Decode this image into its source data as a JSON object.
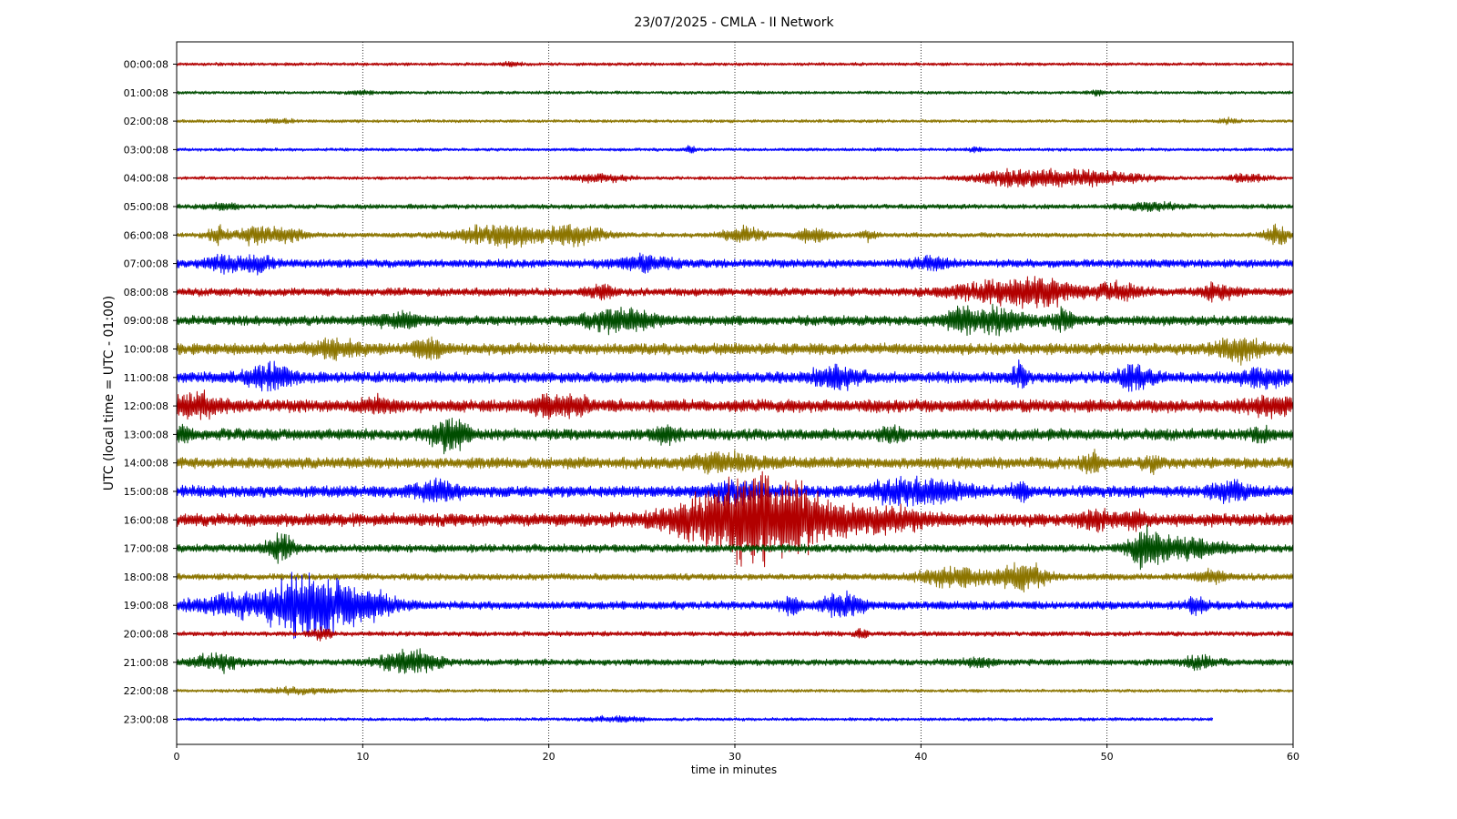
{
  "chart_data": {
    "type": "line",
    "title": "23/07/2025 - CMLA - II Network",
    "xlabel": "time in minutes",
    "ylabel": "UTC (local time = UTC - 01:00)",
    "xlim": [
      0,
      60
    ],
    "x_ticks": [
      0,
      10,
      20,
      30,
      40,
      50,
      60
    ],
    "x_tick_labels": [
      "0",
      "10",
      "20",
      "30",
      "40",
      "50",
      "60"
    ],
    "grid": "vertical dotted at x ticks",
    "colors": [
      "#b20000",
      "#004d00",
      "#8c7500",
      "#0000ff"
    ],
    "series": [
      {
        "label": "00:00:08",
        "color": "#b20000",
        "amp": 2,
        "end": 60,
        "events": [
          [
            18,
            0.5,
            3
          ]
        ]
      },
      {
        "label": "01:00:08",
        "color": "#004d00",
        "amp": 2,
        "end": 60,
        "events": [
          [
            10,
            0.6,
            2
          ],
          [
            49.5,
            0.5,
            3
          ]
        ]
      },
      {
        "label": "02:00:08",
        "color": "#8c7500",
        "amp": 2,
        "end": 60,
        "events": [
          [
            5.5,
            1,
            2
          ],
          [
            56.5,
            0.5,
            3
          ]
        ]
      },
      {
        "label": "03:00:08",
        "color": "#0000ff",
        "amp": 2,
        "end": 60,
        "events": [
          [
            27.6,
            0.2,
            6
          ],
          [
            43,
            0.4,
            3
          ]
        ]
      },
      {
        "label": "04:00:08",
        "color": "#b20000",
        "amp": 2,
        "end": 60,
        "events": [
          [
            22.8,
            1.6,
            5
          ],
          [
            45,
            2.2,
            11
          ],
          [
            49,
            3,
            10
          ],
          [
            57.5,
            1,
            6
          ]
        ]
      },
      {
        "label": "05:00:08",
        "color": "#004d00",
        "amp": 3,
        "end": 60,
        "events": [
          [
            2.5,
            1,
            3
          ],
          [
            52.5,
            1.5,
            4
          ]
        ]
      },
      {
        "label": "06:00:08",
        "color": "#8c7500",
        "amp": 3,
        "end": 60,
        "events": [
          [
            2.2,
            0.6,
            10
          ],
          [
            4.2,
            0.9,
            12
          ],
          [
            6,
            1,
            8
          ],
          [
            17.5,
            2.5,
            14
          ],
          [
            21.5,
            1.5,
            12
          ],
          [
            30.5,
            1.2,
            9
          ],
          [
            34.2,
            0.9,
            10
          ],
          [
            37.2,
            0.4,
            6
          ],
          [
            59.2,
            0.7,
            12
          ]
        ]
      },
      {
        "label": "07:00:08",
        "color": "#0000ff",
        "amp": 5,
        "end": 60,
        "events": [
          [
            2.5,
            1,
            9
          ],
          [
            4.4,
            0.8,
            10
          ],
          [
            25,
            1.8,
            8
          ],
          [
            40.5,
            1,
            6
          ]
        ]
      },
      {
        "label": "08:00:08",
        "color": "#b20000",
        "amp": 5,
        "end": 60,
        "events": [
          [
            22.8,
            0.7,
            8
          ],
          [
            44,
            2.5,
            11
          ],
          [
            46.5,
            1.5,
            16
          ],
          [
            50.5,
            1.5,
            9
          ],
          [
            56,
            1,
            9
          ]
        ]
      },
      {
        "label": "09:00:08",
        "color": "#004d00",
        "amp": 6,
        "end": 60,
        "events": [
          [
            12,
            1.2,
            8
          ],
          [
            23.8,
            1.8,
            14
          ],
          [
            42,
            0.5,
            14
          ],
          [
            43.8,
            2,
            14
          ],
          [
            47.6,
            0.6,
            12
          ]
        ]
      },
      {
        "label": "10:00:08",
        "color": "#8c7500",
        "amp": 7,
        "end": 60,
        "events": [
          [
            8.5,
            1.5,
            9
          ],
          [
            13.5,
            0.8,
            10
          ],
          [
            57.2,
            1.3,
            13
          ]
        ]
      },
      {
        "label": "11:00:08",
        "color": "#0000ff",
        "amp": 7,
        "end": 60,
        "events": [
          [
            5,
            1.2,
            13
          ],
          [
            35.5,
            1.2,
            14
          ],
          [
            45.3,
            0.5,
            14
          ],
          [
            51.5,
            0.8,
            17
          ],
          [
            58.5,
            1.4,
            10
          ]
        ]
      },
      {
        "label": "12:00:08",
        "color": "#b20000",
        "amp": 8,
        "end": 60,
        "events": [
          [
            1,
            1.5,
            12
          ],
          [
            10.8,
            0.8,
            9
          ],
          [
            20,
            0.8,
            12
          ],
          [
            21.5,
            0.8,
            10
          ],
          [
            58.8,
            1.2,
            10
          ]
        ]
      },
      {
        "label": "13:00:08",
        "color": "#004d00",
        "amp": 7,
        "end": 60,
        "events": [
          [
            0.3,
            0.5,
            8
          ],
          [
            14.6,
            0.9,
            24
          ],
          [
            26.3,
            0.6,
            10
          ],
          [
            38.5,
            0.6,
            8
          ],
          [
            58.2,
            0.5,
            8
          ]
        ]
      },
      {
        "label": "14:00:08",
        "color": "#8c7500",
        "amp": 7,
        "end": 60,
        "events": [
          [
            29.5,
            2,
            10
          ],
          [
            49.2,
            0.5,
            12
          ],
          [
            52.5,
            0.5,
            9
          ]
        ]
      },
      {
        "label": "15:00:08",
        "color": "#0000ff",
        "amp": 7,
        "end": 60,
        "events": [
          [
            14,
            1.2,
            14
          ],
          [
            30,
            1.5,
            12
          ],
          [
            38.7,
            1.5,
            12
          ],
          [
            41.2,
            1.5,
            12
          ],
          [
            45.3,
            0.4,
            14
          ],
          [
            56.5,
            1,
            10
          ]
        ]
      },
      {
        "label": "16:00:08",
        "color": "#b20000",
        "amp": 8,
        "end": 60,
        "events": [
          [
            29.5,
            3,
            34
          ],
          [
            32.5,
            2.5,
            44
          ],
          [
            37.5,
            3,
            14
          ],
          [
            49.5,
            1,
            10
          ],
          [
            51.5,
            0.5,
            10
          ]
        ]
      },
      {
        "label": "17:00:08",
        "color": "#004d00",
        "amp": 5,
        "end": 60,
        "events": [
          [
            5.5,
            0.8,
            16
          ],
          [
            52,
            0.8,
            22
          ],
          [
            54,
            2,
            15
          ]
        ]
      },
      {
        "label": "18:00:08",
        "color": "#8c7500",
        "amp": 4,
        "end": 60,
        "events": [
          [
            42,
            2,
            12
          ],
          [
            45.5,
            1.2,
            18
          ],
          [
            55.5,
            0.8,
            8
          ]
        ]
      },
      {
        "label": "19:00:08",
        "color": "#0000ff",
        "amp": 5,
        "end": 60,
        "events": [
          [
            3,
            2.5,
            12
          ],
          [
            7,
            2.2,
            38
          ],
          [
            10,
            2,
            16
          ],
          [
            33,
            0.6,
            10
          ],
          [
            35.8,
            1.2,
            14
          ],
          [
            54.8,
            0.5,
            10
          ]
        ]
      },
      {
        "label": "20:00:08",
        "color": "#b20000",
        "amp": 3,
        "end": 60,
        "events": [
          [
            7.8,
            0.5,
            8
          ],
          [
            36.8,
            0.3,
            6
          ]
        ]
      },
      {
        "label": "21:00:08",
        "color": "#004d00",
        "amp": 4,
        "end": 60,
        "events": [
          [
            2.2,
            1.2,
            10
          ],
          [
            12.5,
            1.5,
            16
          ],
          [
            43,
            0.8,
            5
          ],
          [
            55,
            1,
            6
          ]
        ]
      },
      {
        "label": "22:00:08",
        "color": "#8c7500",
        "amp": 2,
        "end": 60,
        "events": [
          [
            6.5,
            2,
            4
          ]
        ]
      },
      {
        "label": "23:00:08",
        "color": "#0000ff",
        "amp": 2,
        "end": 55.7,
        "events": [
          [
            23.5,
            1.5,
            3
          ]
        ]
      }
    ]
  }
}
